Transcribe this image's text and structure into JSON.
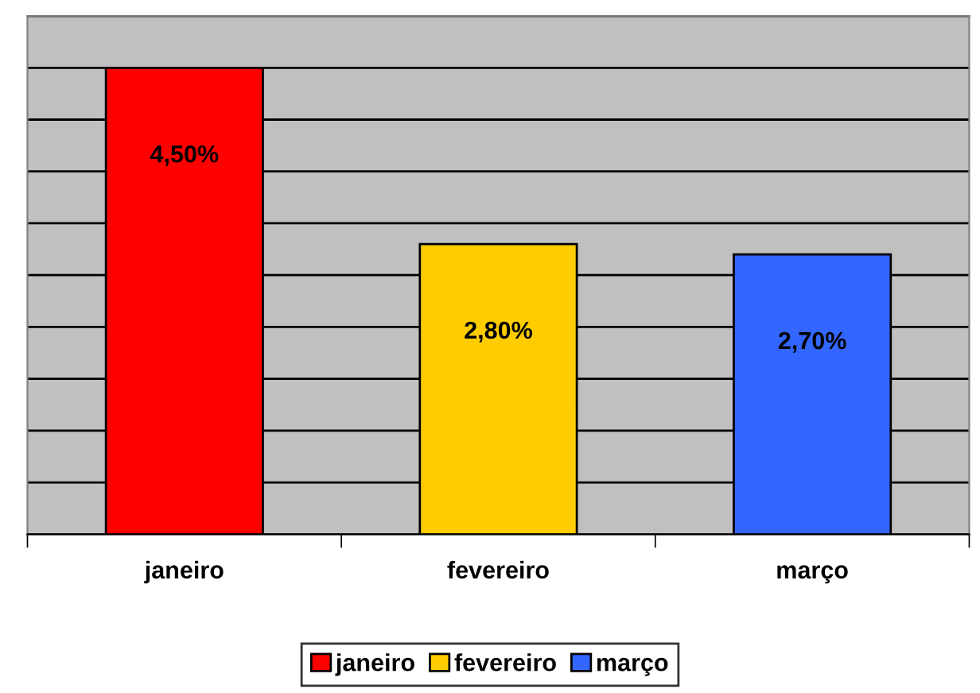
{
  "chart_data": {
    "type": "bar",
    "categories": [
      "janeiro",
      "fevereiro",
      "março"
    ],
    "series": [
      {
        "name": "janeiro",
        "color": "#ff0000",
        "values": [
          4.5,
          null,
          null
        ],
        "value_labels": [
          "4,50%",
          null,
          null
        ]
      },
      {
        "name": "fevereiro",
        "color": "#ffcc00",
        "values": [
          null,
          2.8,
          null
        ],
        "value_labels": [
          null,
          "2,80%",
          null
        ]
      },
      {
        "name": "março",
        "color": "#3366ff",
        "values": [
          null,
          null,
          2.7
        ],
        "value_labels": [
          null,
          null,
          "2,70%"
        ]
      }
    ],
    "ylim": [
      0,
      5
    ],
    "yticks": [
      {
        "value": 0,
        "label": null
      },
      {
        "value": 0.5,
        "label": null
      },
      {
        "value": 1,
        "label": null
      },
      {
        "value": 1.5,
        "label": null
      },
      {
        "value": 2,
        "label": null
      },
      {
        "value": 2.5,
        "label": null
      },
      {
        "value": 3,
        "label": null
      },
      {
        "value": 3.5,
        "label": null
      },
      {
        "value": 4,
        "label": null
      },
      {
        "value": 4.5,
        "label": null
      },
      {
        "value": 5,
        "label": null
      }
    ],
    "tick_labels": "x",
    "grid": "y",
    "legend": "bottom"
  }
}
